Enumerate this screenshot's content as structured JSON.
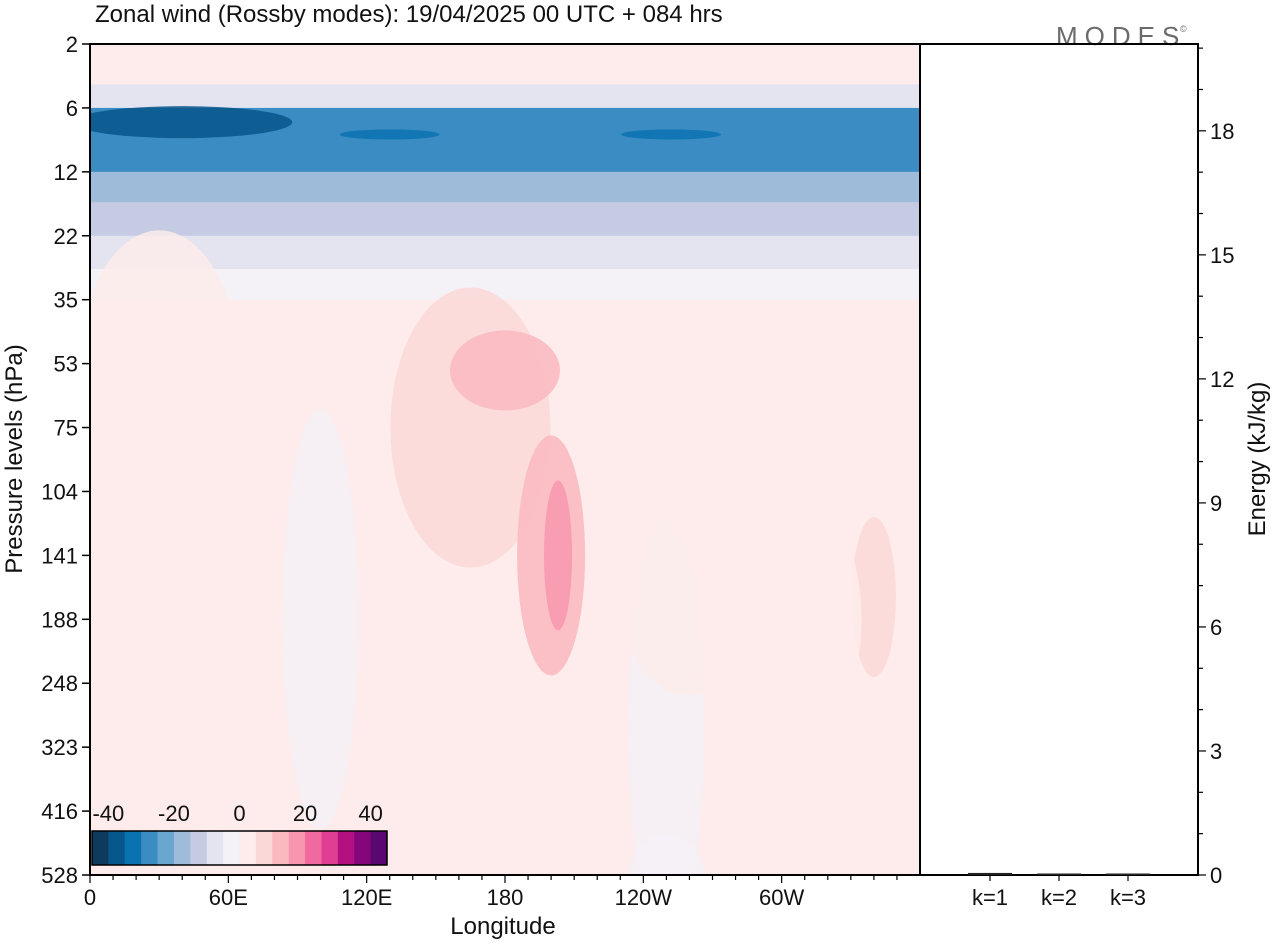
{
  "logo": {
    "text": "MODES",
    "mark": "©"
  },
  "chart_data": [
    {
      "type": "heatmap",
      "title": "Zonal wind (Rossby modes):  19/04/2025  00 UTC  + 084 hrs",
      "xlabel": "Longitude",
      "ylabel": "Pressure levels (hPa)",
      "x_ticks": [
        "0",
        "60E",
        "120E",
        "180",
        "120W",
        "60W"
      ],
      "x_tick_degrees": [
        0,
        60,
        120,
        180,
        240,
        300
      ],
      "xlim": [
        0,
        360
      ],
      "y_ticks": [
        2,
        6,
        12,
        22,
        35,
        53,
        75,
        104,
        141,
        188,
        248,
        323,
        416,
        528
      ],
      "y_scale": "model levels, increasing downward",
      "colorbar": {
        "tick_labels": [
          "-40",
          "-20",
          "0",
          "20",
          "40"
        ],
        "tick_values": [
          -40,
          -20,
          0,
          20,
          40
        ],
        "range": [
          -45,
          45
        ],
        "colors": [
          "#0e3a5e",
          "#07568c",
          "#0a72b0",
          "#3a8cc2",
          "#6aa7cf",
          "#9ebcd9",
          "#c4cbe3",
          "#e4e4f0",
          "#f4f1f7",
          "#fdeceb",
          "#fbd8d8",
          "#fab9bf",
          "#f896ae",
          "#f06aa0",
          "#e03e93",
          "#b51082",
          "#85067a",
          "#5a0772"
        ],
        "placement": "bottom-left"
      },
      "bands": [
        {
          "p": 2,
          "u": 3
        },
        {
          "p": 3,
          "u": 1
        },
        {
          "p": 4,
          "u": -8
        },
        {
          "p": 6,
          "u": -30
        },
        {
          "p": 9,
          "u": -26
        },
        {
          "p": 12,
          "u": -20
        },
        {
          "p": 16,
          "u": -14
        },
        {
          "p": 22,
          "u": -7
        },
        {
          "p": 28,
          "u": -2
        },
        {
          "p": 35,
          "u": 1
        },
        {
          "p": 53,
          "u": 3
        },
        {
          "p": 75,
          "u": 1
        },
        {
          "p": 104,
          "u": 0
        },
        {
          "p": 528,
          "u": 0
        }
      ],
      "features": [
        {
          "lon": 40,
          "p": 7,
          "u": -38
        },
        {
          "lon": 130,
          "p": 8,
          "u": -34
        },
        {
          "lon": 252,
          "p": 8,
          "u": -34
        },
        {
          "lon": 30,
          "p": 55,
          "u": 4
        },
        {
          "lon": 165,
          "p": 75,
          "u": 5
        },
        {
          "lon": 180,
          "p": 55,
          "u": 10
        },
        {
          "lon": 200,
          "p": 141,
          "u": 12
        },
        {
          "lon": 203,
          "p": 141,
          "u": 15
        },
        {
          "lon": 340,
          "p": 170,
          "u": 9
        },
        {
          "lon": 100,
          "p": 188,
          "u": -4
        },
        {
          "lon": 250,
          "p": 300,
          "u": -4
        },
        {
          "lon": 250,
          "p": 528,
          "u": -4
        },
        {
          "lon": 15,
          "p": 170,
          "u": 2
        },
        {
          "lon": 260,
          "p": 141,
          "u": 4
        },
        {
          "lon": 300,
          "p": 188,
          "u": 4
        }
      ]
    },
    {
      "type": "bar",
      "ylabel": "Energy (kJ/kg)",
      "categories": [
        "k=1",
        "k=2",
        "k=3"
      ],
      "values": [
        0.05,
        0.03,
        0.02
      ],
      "y_ticks": [
        0,
        3,
        6,
        9,
        12,
        15,
        18
      ],
      "ylim": [
        0,
        20.1
      ]
    }
  ]
}
